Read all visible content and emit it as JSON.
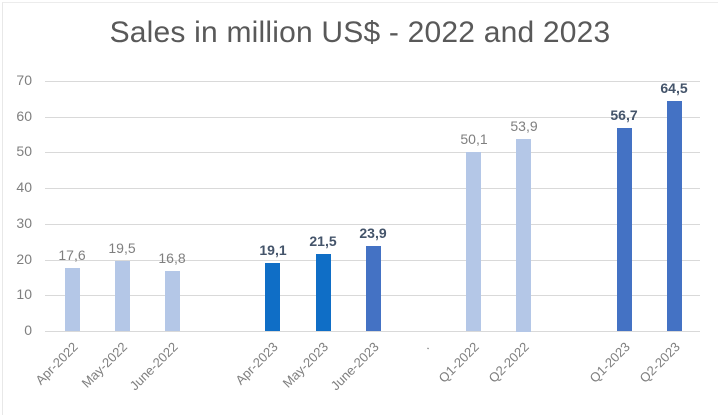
{
  "chart_data": {
    "type": "bar",
    "title": "Sales in million US$ - 2022 and 2023",
    "xlabel": "",
    "ylabel": "",
    "ylim": [
      0,
      70
    ],
    "yticks": [
      0,
      10,
      20,
      30,
      40,
      50,
      60,
      70
    ],
    "grid": true,
    "legend": null,
    "categories": [
      "Apr-2022",
      "May-2022",
      "June-2022",
      "",
      "Apr-2023",
      "May-2023",
      "June-2023",
      ".",
      "Q1-2022",
      "Q2-2022",
      "",
      "Q1-2023",
      "Q2-2023"
    ],
    "values": [
      17.6,
      19.5,
      16.8,
      null,
      19.1,
      21.5,
      23.9,
      null,
      50.1,
      53.9,
      null,
      56.7,
      64.5
    ],
    "data_labels": [
      "17,6",
      "19,5",
      "16,8",
      "",
      "19,1",
      "21,5",
      "23,9",
      "",
      "50,1",
      "53,9",
      "",
      "56,7",
      "64,5"
    ],
    "bar_colors": [
      "#b4c7e7",
      "#b4c7e7",
      "#b4c7e7",
      null,
      "#0f6ec6",
      "#0f6ec6",
      "#4472c4",
      null,
      "#b4c7e7",
      "#b4c7e7",
      null,
      "#4472c4",
      "#4472c4"
    ],
    "label_style": [
      "plain",
      "plain",
      "plain",
      null,
      "bold",
      "bold",
      "bold",
      null,
      "plain",
      "plain",
      null,
      "bold",
      "bold"
    ]
  },
  "colors": {
    "light_blue": "#b4c7e7",
    "medium_blue": "#0f6ec6",
    "accent_blue": "#4472c4",
    "label_bold": "#44546a",
    "label_plain": "#7f7f7f",
    "grid": "#d9d9d9",
    "title": "#595959"
  }
}
